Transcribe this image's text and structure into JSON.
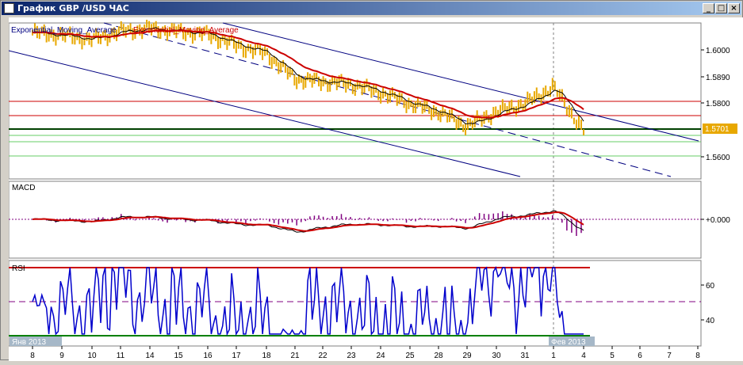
{
  "window": {
    "title": "График GBP /USD  ЧАС",
    "minimize_label": "_",
    "maximize_label": "□",
    "close_label": "×"
  },
  "price_panel": {
    "legend_1": "Exponential_Moving_Average",
    "legend_2": "Exponential_Moving_Average",
    "current_price": "1.5701",
    "y_ticks": [
      "1.6000",
      "1.5890",
      "1.5800",
      "1.5700",
      "1.5600"
    ]
  },
  "macd_panel": {
    "label": "MACD",
    "zero_label": "+0.000"
  },
  "rsi_panel": {
    "label": "RSI",
    "y_ticks": [
      "60",
      "40"
    ],
    "month_label_1": "Янв 2013",
    "month_label_2": "Фев 2013"
  },
  "x_axis": {
    "labels": [
      "8",
      "9",
      "10",
      "11",
      "14",
      "15",
      "16",
      "17",
      "18",
      "21",
      "22",
      "23",
      "24",
      "25",
      "28",
      "29",
      "30",
      "31",
      "1",
      "4",
      "5",
      "6",
      "7",
      "8"
    ]
  },
  "colors": {
    "price_line": "#e8a800",
    "ema_fast": "#000000",
    "ema_slow": "#cc0000",
    "channel": "#000080",
    "support_green": "#008000",
    "resistance_red": "#cc0000",
    "rsi_line": "#0000cc",
    "macd_hist": "#800080",
    "price_tag_bg": "#e8a800"
  },
  "chart_data": [
    {
      "type": "line",
      "title": "GBP /USD",
      "series": [
        {
          "name": "Exponential_Moving_Average"
        },
        {
          "name": "Exponential_Moving_Average"
        }
      ],
      "x": [
        "8",
        "9",
        "10",
        "11",
        "14",
        "15",
        "16",
        "17",
        "18",
        "21",
        "22",
        "23",
        "24",
        "25",
        "28",
        "29",
        "30",
        "31",
        "1",
        "4"
      ],
      "values": [
        1.6055,
        1.6045,
        1.603,
        1.606,
        1.607,
        1.606,
        1.605,
        1.601,
        1.598,
        1.589,
        1.588,
        1.587,
        1.584,
        1.58,
        1.577,
        1.572,
        1.577,
        1.58,
        1.586,
        1.5701
      ],
      "ylim": [
        1.553,
        1.609
      ],
      "levels": {
        "red": [
          1.581,
          1.576
        ],
        "green": [
          1.571,
          1.568,
          1.565,
          1.561
        ]
      }
    },
    {
      "type": "line",
      "title": "MACD",
      "zero_line": 0.0
    },
    {
      "type": "line",
      "title": "RSI",
      "y_ticks": [
        60,
        40
      ],
      "overbought": 70,
      "midline": 50,
      "oversold": 30
    }
  ]
}
